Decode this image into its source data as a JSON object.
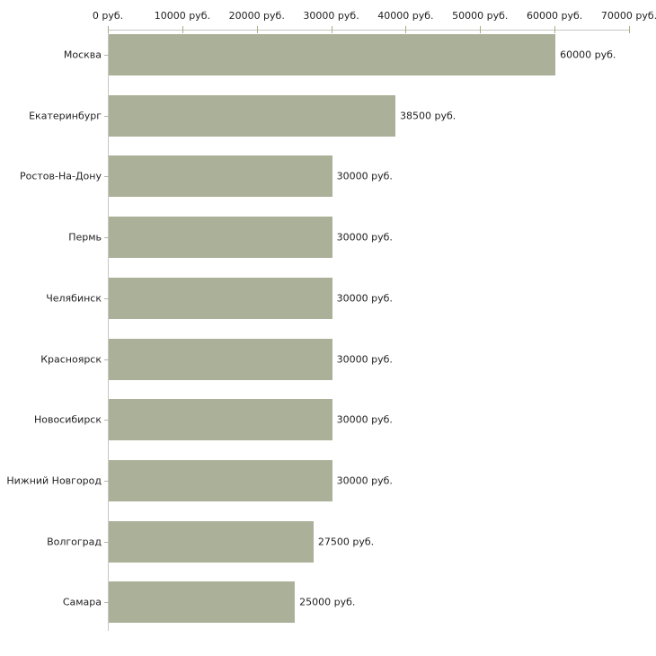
{
  "chart_data": {
    "type": "bar",
    "orientation": "horizontal",
    "title": "",
    "categories": [
      "Москва",
      "Екатеринбург",
      "Ростов-На-Дону",
      "Пермь",
      "Челябинск",
      "Красноярск",
      "Новосибирск",
      "Нижний Новгород",
      "Волгоград",
      "Самара"
    ],
    "values": [
      60000,
      38500,
      30000,
      30000,
      30000,
      30000,
      30000,
      30000,
      27500,
      25000
    ],
    "value_labels": [
      "60000 руб.",
      "38500 руб.",
      "30000 руб.",
      "30000 руб.",
      "30000 руб.",
      "30000 руб.",
      "30000 руб.",
      "30000 руб.",
      "27500 руб.",
      "25000 руб."
    ],
    "x_axis": {
      "position": "top",
      "min": 0,
      "max": 70000,
      "step": 10000,
      "unit": "руб.",
      "tick_labels": [
        "0 руб.",
        "10000 руб.",
        "20000 руб.",
        "30000 руб.",
        "40000 руб.",
        "50000 руб.",
        "60000 руб.",
        "70000 руб."
      ]
    },
    "grid": false,
    "legend": null,
    "colors": {
      "bar": "#abb199",
      "axis_line": "#c6c6c2",
      "x_tick": "#a9ae86",
      "y_tick": "#b4b7a8",
      "text": "#1f1f1f",
      "background": "#ffffff"
    }
  }
}
